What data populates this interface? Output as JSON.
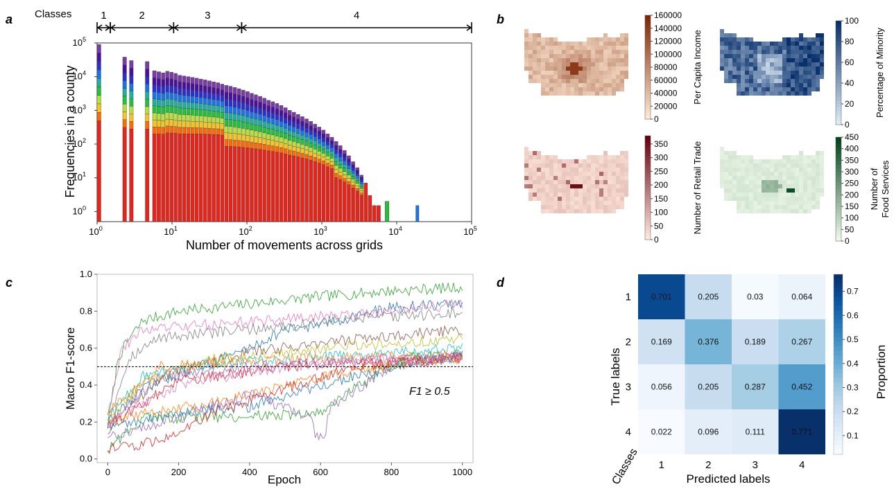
{
  "panels": {
    "a": {
      "letter": "a"
    },
    "b": {
      "letter": "b"
    },
    "c": {
      "letter": "c"
    },
    "d": {
      "letter": "d"
    }
  },
  "colors": {
    "income_low": "#fde8d4",
    "income_high": "#7f2704",
    "minority_low": "#deebf7",
    "minority_high": "#08306b",
    "retail_low": "#fee7dc",
    "retail_high": "#67000d",
    "food_low": "#edf8e9",
    "food_high": "#00441b",
    "confusion_low": "#f7fbff",
    "confusion_high": "#08306b"
  },
  "chart_data": [
    {
      "id": "a",
      "type": "bar",
      "stacked": true,
      "log_x": true,
      "log_y": true,
      "title": "",
      "xlabel": "Number of movements across grids",
      "ylabel": "Frequencies in a county",
      "xlim": [
        1,
        100000
      ],
      "ylim": [
        0.5,
        100000
      ],
      "x_ticks": [
        "10^0",
        "10^1",
        "10^2",
        "10^3",
        "10^4",
        "10^5"
      ],
      "y_ticks": [
        "10^0",
        "10^1",
        "10^2",
        "10^3",
        "10^4",
        "10^5"
      ],
      "classes_header": "Classes",
      "class_labels": [
        "1",
        "2",
        "3",
        "4"
      ],
      "class_bounds": [
        1,
        1.5,
        10.5,
        85,
        100000
      ],
      "stack_colors": [
        "#e8231a",
        "#ff6a00",
        "#f7c51e",
        "#b7e03c",
        "#22c23b",
        "#1fb0a0",
        "#1874e8",
        "#2b2fd0",
        "#4b0fa0",
        "#7a3aa8"
      ],
      "totals": [
        [
          1,
          90000
        ],
        [
          2.2,
          38000
        ],
        [
          2.7,
          30000
        ],
        [
          4.4,
          28000
        ],
        [
          5.5,
          15000
        ],
        [
          6.3,
          14000
        ],
        [
          7.2,
          13000
        ],
        [
          8.2,
          14500
        ],
        [
          9.3,
          13500
        ],
        [
          10.6,
          12500
        ],
        [
          12,
          11000
        ],
        [
          13.7,
          10500
        ],
        [
          15.6,
          10000
        ],
        [
          17.8,
          9500
        ],
        [
          20.3,
          9000
        ],
        [
          23.1,
          8500
        ],
        [
          26.3,
          8000
        ],
        [
          29.9,
          7500
        ],
        [
          34.1,
          7000
        ],
        [
          38.8,
          6600
        ],
        [
          44.2,
          6000
        ],
        [
          50.3,
          5500
        ],
        [
          57.3,
          5200
        ],
        [
          65.2,
          4800
        ],
        [
          74.3,
          4400
        ],
        [
          84.6,
          4000
        ],
        [
          96.3,
          3600
        ],
        [
          110,
          3200
        ],
        [
          125,
          2900
        ],
        [
          142,
          2600
        ],
        [
          162,
          2300
        ],
        [
          184,
          2000
        ],
        [
          210,
          1800
        ],
        [
          239,
          1600
        ],
        [
          272,
          1400
        ],
        [
          310,
          1200
        ],
        [
          353,
          1000
        ],
        [
          402,
          880
        ],
        [
          458,
          760
        ],
        [
          521,
          650
        ],
        [
          593,
          560
        ],
        [
          675,
          470
        ],
        [
          769,
          390
        ],
        [
          876,
          320
        ],
        [
          997,
          260
        ],
        [
          1135,
          200
        ],
        [
          1293,
          160
        ],
        [
          1472,
          120
        ],
        [
          1676,
          90
        ],
        [
          1909,
          65
        ],
        [
          2173,
          45
        ],
        [
          2475,
          30
        ],
        [
          2818,
          20
        ],
        [
          3209,
          12
        ],
        [
          3654,
          7
        ],
        [
          4161,
          3
        ],
        [
          4737,
          1.5
        ],
        [
          5395,
          1.5
        ],
        [
          7000,
          2
        ],
        [
          18000,
          1.5
        ]
      ]
    },
    {
      "id": "b",
      "type": "heatmap",
      "maps": [
        {
          "label": "Per Capita Income",
          "ticks": [
            "160000",
            "140000",
            "120000",
            "100000",
            "80000",
            "60000",
            "40000",
            "20000",
            "0"
          ],
          "vmax": 160000
        },
        {
          "label": "Percentage of Minority",
          "ticks": [
            "100",
            "80",
            "60",
            "40",
            "20",
            "0"
          ],
          "vmax": 100
        },
        {
          "label": "Number of Retail Trade",
          "ticks": [
            "350",
            "300",
            "250",
            "200",
            "150",
            "100",
            "50",
            "0"
          ],
          "vmax": 380
        },
        {
          "label": "Number of Food Services",
          "ticks": [
            "450",
            "400",
            "350",
            "300",
            "250",
            "200",
            "150",
            "100",
            "50",
            "0"
          ],
          "vmax": 450
        }
      ]
    },
    {
      "id": "c",
      "type": "line",
      "title": "",
      "xlabel": "Epoch",
      "ylabel": "Macro F1-score",
      "xlim": [
        -30,
        1030
      ],
      "ylim": [
        -0.02,
        1.0
      ],
      "x_ticks": [
        "0",
        "200",
        "400",
        "600",
        "800",
        "1000"
      ],
      "y_ticks": [
        "0.0",
        "0.2",
        "0.4",
        "0.6",
        "0.8",
        "1.0"
      ],
      "threshold": 0.5,
      "threshold_label": "F1 ≥ 0.5",
      "series_colors": [
        "#2ca02c",
        "#1f77b4",
        "#e377c2",
        "#7f7f7f",
        "#8c564b",
        "#bcbd22",
        "#17becf",
        "#ff7f0e",
        "#9467bd",
        "#d62728",
        "#2ca02c",
        "#1f77b4",
        "#ff7f0e",
        "#9467bd",
        "#d62728",
        "#e377c2"
      ],
      "series_shapes": [
        [
          [
            0,
            0.18
          ],
          [
            30,
            0.55
          ],
          [
            60,
            0.65
          ],
          [
            100,
            0.75
          ],
          [
            200,
            0.8
          ],
          [
            400,
            0.84
          ],
          [
            600,
            0.88
          ],
          [
            800,
            0.91
          ],
          [
            1000,
            0.93
          ]
        ],
        [
          [
            0,
            0.2
          ],
          [
            100,
            0.38
          ],
          [
            250,
            0.5
          ],
          [
            400,
            0.6
          ],
          [
            500,
            0.7
          ],
          [
            600,
            0.73
          ],
          [
            800,
            0.82
          ],
          [
            1000,
            0.84
          ]
        ],
        [
          [
            0,
            0.25
          ],
          [
            40,
            0.6
          ],
          [
            100,
            0.7
          ],
          [
            300,
            0.73
          ],
          [
            600,
            0.77
          ],
          [
            800,
            0.8
          ],
          [
            1000,
            0.84
          ]
        ],
        [
          [
            0,
            0.2
          ],
          [
            60,
            0.55
          ],
          [
            150,
            0.66
          ],
          [
            400,
            0.7
          ],
          [
            700,
            0.76
          ],
          [
            1000,
            0.79
          ]
        ],
        [
          [
            0,
            0.15
          ],
          [
            150,
            0.45
          ],
          [
            400,
            0.58
          ],
          [
            700,
            0.65
          ],
          [
            1000,
            0.7
          ]
        ],
        [
          [
            0,
            0.2
          ],
          [
            100,
            0.42
          ],
          [
            300,
            0.54
          ],
          [
            600,
            0.6
          ],
          [
            1000,
            0.65
          ]
        ],
        [
          [
            0,
            0.22
          ],
          [
            100,
            0.45
          ],
          [
            300,
            0.52
          ],
          [
            700,
            0.56
          ],
          [
            1000,
            0.6
          ]
        ],
        [
          [
            0,
            0.25
          ],
          [
            150,
            0.5
          ],
          [
            400,
            0.53
          ],
          [
            700,
            0.55
          ],
          [
            1000,
            0.56
          ]
        ],
        [
          [
            0,
            0.2
          ],
          [
            150,
            0.45
          ],
          [
            400,
            0.5
          ],
          [
            700,
            0.53
          ],
          [
            1000,
            0.55
          ]
        ],
        [
          [
            0,
            0.18
          ],
          [
            200,
            0.42
          ],
          [
            500,
            0.5
          ],
          [
            800,
            0.52
          ],
          [
            1000,
            0.55
          ]
        ],
        [
          [
            0,
            0.05
          ],
          [
            100,
            0.22
          ],
          [
            400,
            0.23
          ],
          [
            600,
            0.25
          ],
          [
            750,
            0.45
          ],
          [
            850,
            0.55
          ],
          [
            1000,
            0.57
          ]
        ],
        [
          [
            0,
            0.18
          ],
          [
            200,
            0.25
          ],
          [
            400,
            0.28
          ],
          [
            600,
            0.4
          ],
          [
            800,
            0.5
          ],
          [
            1000,
            0.56
          ]
        ],
        [
          [
            0,
            0.2
          ],
          [
            100,
            0.25
          ],
          [
            300,
            0.3
          ],
          [
            500,
            0.4
          ],
          [
            700,
            0.48
          ],
          [
            1000,
            0.55
          ]
        ],
        [
          [
            0,
            0.12
          ],
          [
            200,
            0.22
          ],
          [
            400,
            0.35
          ],
          [
            600,
            0.2
          ],
          [
            640,
            0.3
          ],
          [
            800,
            0.5
          ],
          [
            1000,
            0.57
          ]
        ],
        [
          [
            0,
            0.05
          ],
          [
            150,
            0.1
          ],
          [
            300,
            0.25
          ],
          [
            500,
            0.38
          ],
          [
            700,
            0.5
          ],
          [
            1000,
            0.55
          ]
        ],
        [
          [
            0,
            0.2
          ],
          [
            200,
            0.4
          ],
          [
            500,
            0.5
          ],
          [
            800,
            0.54
          ],
          [
            1000,
            0.56
          ]
        ]
      ]
    },
    {
      "id": "d",
      "type": "heatmap",
      "xlabel": "Predicted labels",
      "ylabel": "True labels",
      "corner_label": "Classes",
      "x_ticks": [
        "1",
        "2",
        "3",
        "4"
      ],
      "y_ticks": [
        "1",
        "2",
        "3",
        "4"
      ],
      "matrix": [
        [
          0.701,
          0.205,
          0.03,
          0.064
        ],
        [
          0.169,
          0.376,
          0.189,
          0.267
        ],
        [
          0.056,
          0.205,
          0.287,
          0.452
        ],
        [
          0.022,
          0.096,
          0.111,
          0.771
        ]
      ],
      "colorbar_label": "Proportion",
      "colorbar_ticks": [
        "0.7",
        "0.6",
        "0.5",
        "0.4",
        "0.3",
        "0.2",
        "0.1"
      ],
      "vmin": 0.022,
      "vmax": 0.771
    }
  ]
}
